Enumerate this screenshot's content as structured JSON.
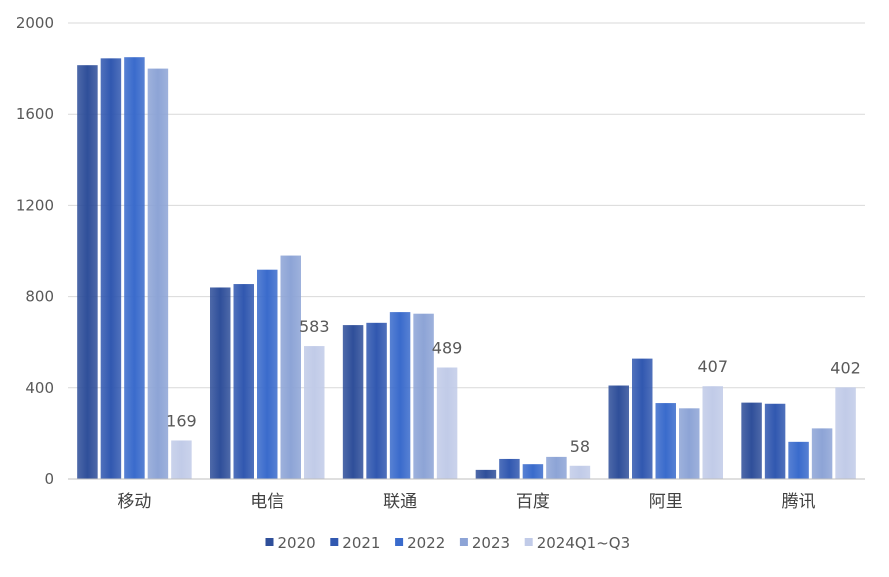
{
  "chart_data": {
    "type": "bar",
    "categories": [
      "移动",
      "电信",
      "联通",
      "百度",
      "阿里",
      "腾讯"
    ],
    "series": [
      {
        "name": "2020",
        "color": "#2f4f9a",
        "values": [
          1815,
          840,
          675,
          40,
          410,
          335
        ]
      },
      {
        "name": "2021",
        "color": "#3158b0",
        "values": [
          1845,
          855,
          685,
          88,
          528,
          330
        ]
      },
      {
        "name": "2022",
        "color": "#3a6bcc",
        "values": [
          1850,
          918,
          732,
          65,
          333,
          163
        ]
      },
      {
        "name": "2023",
        "color": "#8da4d6",
        "values": [
          1800,
          980,
          725,
          97,
          310,
          222
        ]
      },
      {
        "name": "2024Q1~Q3",
        "color": "#c1cbe8",
        "values": [
          169,
          583,
          489,
          58,
          407,
          402
        ]
      }
    ],
    "data_labels": {
      "series": "2024Q1~Q3",
      "values": [
        "169",
        "583",
        "489",
        "58",
        "407",
        "402"
      ]
    },
    "y_ticks": [
      "0",
      "400",
      "800",
      "1200",
      "1600",
      "2000"
    ],
    "ylim": [
      0,
      2000
    ],
    "grid": true,
    "legend_position": "bottom",
    "title": "",
    "xlabel": "",
    "ylabel": ""
  }
}
